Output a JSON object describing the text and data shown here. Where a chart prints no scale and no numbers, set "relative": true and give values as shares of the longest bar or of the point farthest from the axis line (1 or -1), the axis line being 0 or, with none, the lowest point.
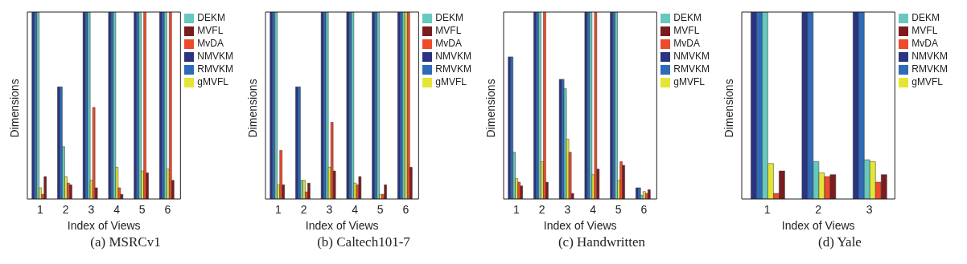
{
  "chart_data": [
    {
      "type": "bar",
      "title": "(a) MSRCv1",
      "xlabel": "Index of Views",
      "ylabel": "Dimensions",
      "categories": [
        "1",
        "2",
        "3",
        "4",
        "5",
        "6"
      ],
      "relative": true,
      "legend": "top right",
      "series": [
        {
          "name": "NMVKM",
          "color": "#2b3480",
          "values": [
            1,
            0.6,
            1,
            1,
            1,
            1
          ]
        },
        {
          "name": "RMVKM",
          "color": "#2f6bb8",
          "values": [
            1,
            0.6,
            1,
            1,
            1,
            1
          ]
        },
        {
          "name": "DEKM",
          "color": "#66c8bf",
          "values": [
            1,
            0.28,
            1,
            1,
            1,
            1
          ]
        },
        {
          "name": "gMVFL",
          "color": "#e5e537",
          "values": [
            0.06,
            0.12,
            0.1,
            0.17,
            0.15,
            0.16
          ]
        },
        {
          "name": "MvDA",
          "color": "#ee4b2b",
          "values": [
            0.025,
            0.085,
            0.49,
            0.06,
            1,
            1
          ]
        },
        {
          "name": "MVFL",
          "color": "#7b1c20",
          "values": [
            0.12,
            0.076,
            0.06,
            0.025,
            0.14,
            0.1
          ]
        }
      ]
    },
    {
      "type": "bar",
      "title": "(b) Caltech101-7",
      "xlabel": "Index of Views",
      "ylabel": "Dimensions",
      "categories": [
        "1",
        "2",
        "3",
        "4",
        "5",
        "6"
      ],
      "relative": true,
      "legend": "top right",
      "series": [
        {
          "name": "NMVKM",
          "color": "#2b3480",
          "values": [
            1,
            0.6,
            1,
            1,
            1,
            1
          ]
        },
        {
          "name": "RMVKM",
          "color": "#2f6bb8",
          "values": [
            1,
            0.6,
            1,
            1,
            1,
            1
          ]
        },
        {
          "name": "DEKM",
          "color": "#66c8bf",
          "values": [
            1,
            0.1,
            1,
            1,
            1,
            1
          ]
        },
        {
          "name": "gMVFL",
          "color": "#e5e537",
          "values": [
            0.076,
            0.1,
            0.17,
            0.085,
            0.025,
            1
          ]
        },
        {
          "name": "MvDA",
          "color": "#ee4b2b",
          "values": [
            0.26,
            0.038,
            0.41,
            0.076,
            0.025,
            1
          ]
        },
        {
          "name": "MVFL",
          "color": "#7b1c20",
          "values": [
            0.076,
            0.085,
            0.15,
            0.12,
            0.076,
            0.17
          ]
        }
      ]
    },
    {
      "type": "bar",
      "title": "(c) Handwritten",
      "xlabel": "Index of Views",
      "ylabel": "Dimensions",
      "categories": [
        "1",
        "2",
        "3",
        "4",
        "5",
        "6"
      ],
      "relative": true,
      "legend": "top right",
      "series": [
        {
          "name": "NMVKM",
          "color": "#2b3480",
          "values": [
            0.76,
            1,
            0.64,
            1,
            1,
            0.06
          ]
        },
        {
          "name": "RMVKM",
          "color": "#2f6bb8",
          "values": [
            0.76,
            1,
            0.64,
            1,
            1,
            0.06
          ]
        },
        {
          "name": "DEKM",
          "color": "#66c8bf",
          "values": [
            0.25,
            1,
            0.59,
            1,
            1,
            0.02
          ]
        },
        {
          "name": "gMVFL",
          "color": "#e5e537",
          "values": [
            0.11,
            0.2,
            0.32,
            0.13,
            0.1,
            0.04
          ]
        },
        {
          "name": "MvDA",
          "color": "#ee4b2b",
          "values": [
            0.09,
            1,
            0.25,
            1,
            0.2,
            0.03
          ]
        },
        {
          "name": "MVFL",
          "color": "#7b1c20",
          "values": [
            0.07,
            0.09,
            0.03,
            0.16,
            0.18,
            0.05
          ]
        }
      ]
    },
    {
      "type": "bar",
      "title": "(d) Yale",
      "xlabel": "Index of Views",
      "ylabel": "Dimensions",
      "categories": [
        "1",
        "2",
        "3"
      ],
      "relative": true,
      "legend": "top right",
      "series": [
        {
          "name": "NMVKM",
          "color": "#2b3480",
          "values": [
            1,
            1,
            1
          ]
        },
        {
          "name": "RMVKM",
          "color": "#2f6bb8",
          "values": [
            1,
            1,
            1
          ]
        },
        {
          "name": "DEKM",
          "color": "#66c8bf",
          "values": [
            1,
            0.2,
            0.21
          ]
        },
        {
          "name": "gMVFL",
          "color": "#e5e537",
          "values": [
            0.19,
            0.14,
            0.2
          ]
        },
        {
          "name": "MvDA",
          "color": "#ee4b2b",
          "values": [
            0.03,
            0.12,
            0.09
          ]
        },
        {
          "name": "MVFL",
          "color": "#7b1c20",
          "values": [
            0.15,
            0.13,
            0.13
          ]
        }
      ]
    }
  ]
}
